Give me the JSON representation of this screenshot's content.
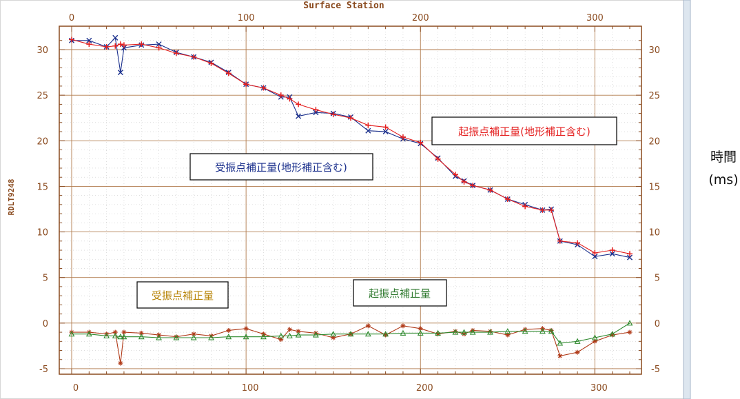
{
  "chart_data": {
    "type": "line",
    "title": "Surface Station",
    "ylabel": "RDLT9248",
    "unit_label": [
      "時間",
      "(ms)"
    ],
    "xlim": [
      0,
      320
    ],
    "ylim": [
      -5,
      31
    ],
    "x_ticks": [
      0,
      100,
      200,
      300
    ],
    "y_ticks": [
      -5,
      0,
      5,
      10,
      15,
      20,
      25,
      30
    ],
    "grid": true,
    "x": [
      0,
      10,
      20,
      25,
      28,
      30,
      40,
      50,
      60,
      70,
      80,
      90,
      100,
      110,
      120,
      125,
      130,
      140,
      150,
      160,
      170,
      180,
      190,
      200,
      210,
      220,
      225,
      230,
      240,
      250,
      260,
      270,
      275,
      280,
      290,
      300,
      310,
      320
    ],
    "series": [
      {
        "name": "受振点補正量(地形補正含む)",
        "color": "#1a2f8c",
        "marker": "x",
        "values": [
          31.0,
          31.0,
          30.3,
          31.3,
          27.5,
          30.2,
          30.5,
          30.6,
          29.7,
          29.2,
          28.6,
          27.5,
          26.2,
          25.8,
          24.8,
          24.8,
          22.7,
          23.1,
          23.0,
          22.6,
          21.1,
          21.0,
          20.2,
          19.7,
          18.1,
          16.1,
          15.6,
          15.1,
          14.6,
          13.6,
          13.0,
          12.4,
          12.5,
          9.0,
          8.6,
          7.3,
          7.6,
          7.2
        ]
      },
      {
        "name": "起振点補正量(地形補正含む)",
        "color": "#e42020",
        "marker": "+",
        "values": [
          31.1,
          30.6,
          30.3,
          30.4,
          30.6,
          30.5,
          30.6,
          30.2,
          29.6,
          29.2,
          28.5,
          27.4,
          26.2,
          25.8,
          25.0,
          24.6,
          24.0,
          23.4,
          22.9,
          22.5,
          21.7,
          21.5,
          20.4,
          19.8,
          18.0,
          16.3,
          15.5,
          15.1,
          14.6,
          13.6,
          12.8,
          12.4,
          12.4,
          9.0,
          8.8,
          7.7,
          8.0,
          7.6
        ]
      },
      {
        "name": "受振点補正量",
        "color": "#b03a18",
        "marker": "*",
        "values": [
          -1.0,
          -1.0,
          -1.2,
          -1.0,
          -4.4,
          -1.0,
          -1.1,
          -1.3,
          -1.5,
          -1.2,
          -1.4,
          -0.8,
          -0.6,
          -1.2,
          -1.8,
          -0.7,
          -0.9,
          -1.1,
          -1.6,
          -1.2,
          -0.3,
          -1.3,
          -0.3,
          -0.6,
          -1.2,
          -0.9,
          -1.2,
          -0.8,
          -0.9,
          -1.3,
          -0.7,
          -0.6,
          -0.8,
          -3.6,
          -3.2,
          -2.0,
          -1.3,
          -1.0
        ]
      },
      {
        "name": "起振点補正量",
        "color": "#2f8a2f",
        "marker": "triangle",
        "values": [
          -1.2,
          -1.2,
          -1.4,
          -1.4,
          -1.5,
          -1.5,
          -1.5,
          -1.6,
          -1.6,
          -1.6,
          -1.6,
          -1.5,
          -1.5,
          -1.5,
          -1.4,
          -1.4,
          -1.3,
          -1.3,
          -1.2,
          -1.2,
          -1.2,
          -1.2,
          -1.1,
          -1.1,
          -1.1,
          -1.0,
          -1.0,
          -1.0,
          -1.0,
          -0.9,
          -0.9,
          -0.9,
          -0.9,
          -2.2,
          -2.0,
          -1.6,
          -1.2,
          0.0
        ]
      }
    ],
    "annotations": [
      {
        "text": "起振点補正量(地形補正含む)",
        "color": "#e42020"
      },
      {
        "text": "受振点補正量(地形補正含む)",
        "color": "#1a2f8c"
      },
      {
        "text": "受振点補正量",
        "color": "#b8860b"
      },
      {
        "text": "起振点補正量",
        "color": "#2f7a2f"
      }
    ]
  }
}
